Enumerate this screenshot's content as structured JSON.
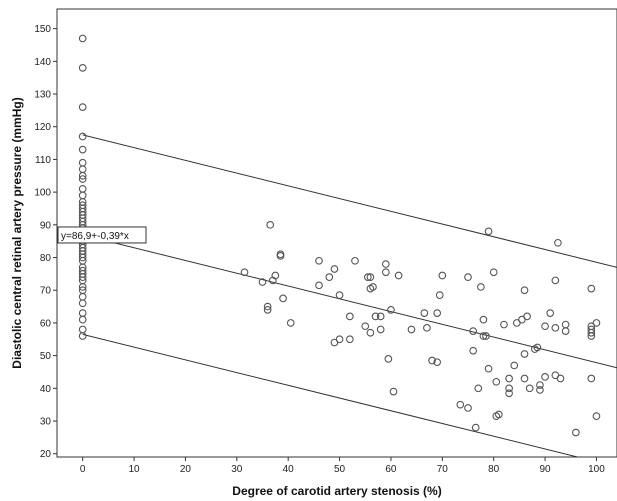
{
  "chart_data": {
    "type": "scatter",
    "title": "",
    "xlabel": "Degree of carotid artery stenosis (%)",
    "ylabel": "Diastolic central retinal artery pressure (mmHg)",
    "xlim": [
      -5,
      104
    ],
    "ylim": [
      19,
      156
    ],
    "xticks": [
      0,
      10,
      20,
      30,
      40,
      50,
      60,
      70,
      80,
      90,
      100
    ],
    "yticks": [
      20,
      30,
      40,
      50,
      60,
      70,
      80,
      90,
      100,
      110,
      120,
      130,
      140,
      150
    ],
    "grid": false,
    "legend": "none",
    "marker": "open-circle",
    "colors": {
      "marker": "#555555",
      "line": "#333333",
      "frame": "#333333"
    },
    "annotation": {
      "text": "y=86,9+-0,39*x",
      "x": 0,
      "y": 86.9
    },
    "lines": [
      {
        "x": [
          0,
          104
        ],
        "y": [
          117.5,
          77.0
        ]
      },
      {
        "x": [
          0,
          104
        ],
        "y": [
          86.9,
          46.3
        ]
      },
      {
        "x": [
          0,
          104
        ],
        "y": [
          56.5,
          16.0
        ]
      }
    ],
    "points": [
      [
        0,
        147
      ],
      [
        0,
        138
      ],
      [
        0,
        126
      ],
      [
        0,
        117
      ],
      [
        0,
        113
      ],
      [
        0,
        109
      ],
      [
        0,
        107
      ],
      [
        0,
        105
      ],
      [
        0,
        104
      ],
      [
        0,
        101
      ],
      [
        0,
        99
      ],
      [
        0,
        97
      ],
      [
        0,
        96
      ],
      [
        0,
        95
      ],
      [
        0,
        94
      ],
      [
        0,
        93
      ],
      [
        0,
        92
      ],
      [
        0,
        91
      ],
      [
        0,
        90
      ],
      [
        0,
        89
      ],
      [
        0,
        88
      ],
      [
        0,
        87
      ],
      [
        0,
        86
      ],
      [
        0,
        85
      ],
      [
        0,
        84
      ],
      [
        0,
        83
      ],
      [
        0,
        82
      ],
      [
        0,
        81
      ],
      [
        0,
        80
      ],
      [
        0,
        79
      ],
      [
        0,
        77
      ],
      [
        0,
        76
      ],
      [
        0,
        75
      ],
      [
        0,
        74
      ],
      [
        0,
        73
      ],
      [
        0,
        71
      ],
      [
        0,
        70
      ],
      [
        0,
        68
      ],
      [
        0,
        66
      ],
      [
        0,
        63
      ],
      [
        0,
        61
      ],
      [
        0,
        58
      ],
      [
        0,
        56
      ],
      [
        31.5,
        75.5
      ],
      [
        35,
        72.5
      ],
      [
        36,
        65
      ],
      [
        36,
        64
      ],
      [
        36.5,
        90
      ],
      [
        37,
        73
      ],
      [
        37.5,
        74.5
      ],
      [
        38.5,
        81
      ],
      [
        38.5,
        80.5
      ],
      [
        39,
        67.5
      ],
      [
        40.5,
        60
      ],
      [
        46,
        79
      ],
      [
        46,
        71.5
      ],
      [
        48,
        74
      ],
      [
        49,
        76.5
      ],
      [
        49,
        54
      ],
      [
        50,
        55
      ],
      [
        50,
        68.5
      ],
      [
        52,
        62
      ],
      [
        53,
        79
      ],
      [
        52,
        55
      ],
      [
        55,
        59
      ],
      [
        55.5,
        74
      ],
      [
        56,
        74
      ],
      [
        56,
        70.5
      ],
      [
        56.5,
        71
      ],
      [
        56,
        57
      ],
      [
        57,
        62
      ],
      [
        58,
        62
      ],
      [
        58,
        58
      ],
      [
        59,
        78
      ],
      [
        59,
        75.5
      ],
      [
        59.5,
        49
      ],
      [
        60,
        64
      ],
      [
        60.5,
        39
      ],
      [
        61.5,
        74.5
      ],
      [
        64,
        58
      ],
      [
        66.5,
        63
      ],
      [
        67,
        58.5
      ],
      [
        68,
        48.5
      ],
      [
        69,
        48
      ],
      [
        69,
        63
      ],
      [
        69.5,
        68.5
      ],
      [
        70,
        74.5
      ],
      [
        73.5,
        35
      ],
      [
        75,
        74
      ],
      [
        75,
        34
      ],
      [
        76,
        51.5
      ],
      [
        76,
        57.5
      ],
      [
        76.5,
        28
      ],
      [
        77,
        40
      ],
      [
        77.5,
        71
      ],
      [
        78,
        61
      ],
      [
        78,
        56
      ],
      [
        78.5,
        56
      ],
      [
        79,
        88
      ],
      [
        79,
        46
      ],
      [
        80,
        75.5
      ],
      [
        80.5,
        42
      ],
      [
        80.5,
        31.5
      ],
      [
        81,
        32
      ],
      [
        82,
        59.5
      ],
      [
        83,
        43
      ],
      [
        83,
        38.5
      ],
      [
        83,
        40
      ],
      [
        84,
        47
      ],
      [
        84.5,
        60
      ],
      [
        85.5,
        61
      ],
      [
        86,
        43
      ],
      [
        86,
        70
      ],
      [
        86,
        50.5
      ],
      [
        86.5,
        62
      ],
      [
        87,
        40
      ],
      [
        88,
        52
      ],
      [
        88.5,
        52.5
      ],
      [
        89,
        41
      ],
      [
        89,
        39.5
      ],
      [
        90,
        59
      ],
      [
        90,
        43.5
      ],
      [
        91,
        63
      ],
      [
        92,
        73
      ],
      [
        92,
        58.5
      ],
      [
        92,
        44
      ],
      [
        92.5,
        84.5
      ],
      [
        93,
        43
      ],
      [
        94,
        59.5
      ],
      [
        94,
        57.5
      ],
      [
        96,
        26.5
      ],
      [
        99,
        70.5
      ],
      [
        99,
        59
      ],
      [
        99,
        58
      ],
      [
        99,
        57
      ],
      [
        99,
        56
      ],
      [
        99,
        43
      ],
      [
        100,
        60
      ],
      [
        100,
        31.5
      ]
    ]
  }
}
